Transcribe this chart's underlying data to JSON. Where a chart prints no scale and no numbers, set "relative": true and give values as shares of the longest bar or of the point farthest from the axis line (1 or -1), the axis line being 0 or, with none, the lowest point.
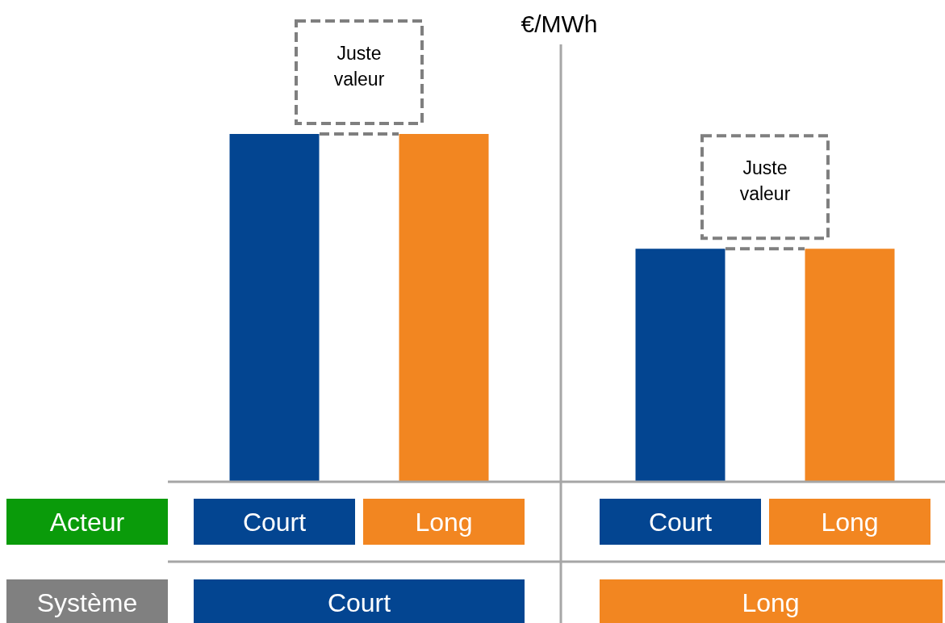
{
  "chart_data": {
    "type": "bar",
    "relative": true,
    "ylabel": "€/MWh",
    "categories": [
      "Court",
      "Long",
      "Court",
      "Long"
    ],
    "values": [
      1,
      1,
      0.67,
      0.67
    ],
    "colors": [
      "#034591",
      "#f28621",
      "#034591",
      "#f28621"
    ],
    "annotations": [
      "Juste valeur",
      "Juste valeur",
      "Acteur",
      "Système",
      "Court",
      "Long"
    ]
  }
}
